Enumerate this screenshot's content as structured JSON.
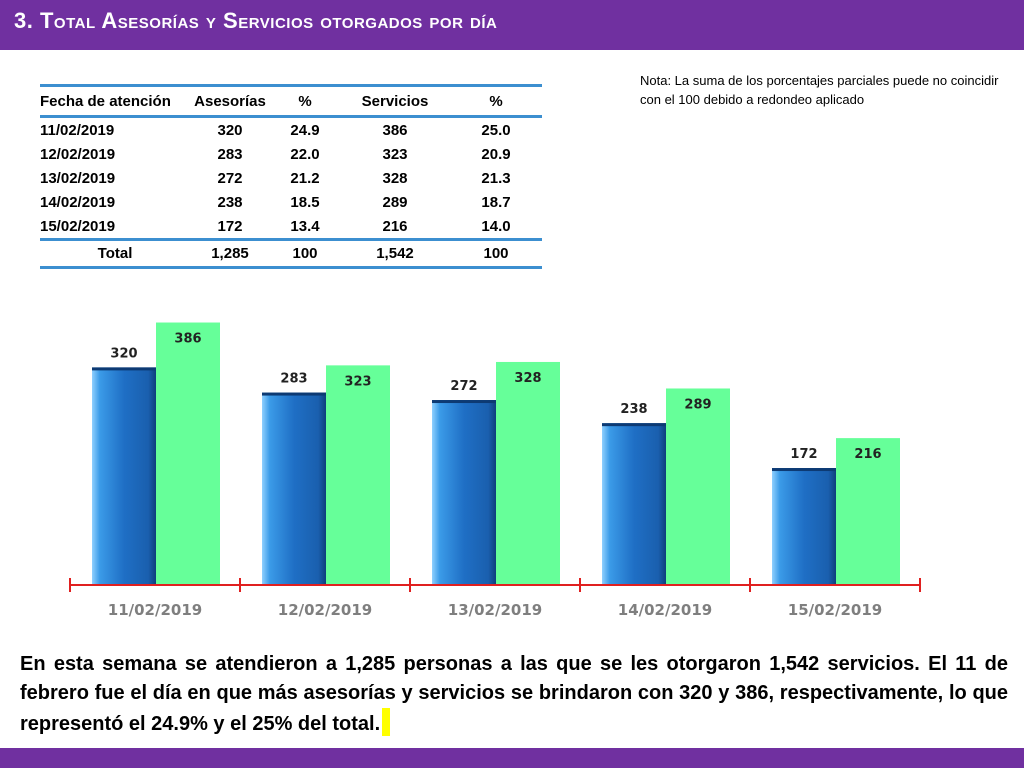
{
  "header": {
    "title": "3.  Total Asesorías y Servicios otorgados por día"
  },
  "note": "Nota: La suma de los porcentajes parciales puede no coincidir con el 100 debido a redondeo aplicado",
  "table": {
    "headers": [
      "Fecha de atención",
      "Asesorías",
      "%",
      "Servicios",
      "%"
    ],
    "rows": [
      [
        "11/02/2019",
        "320",
        "24.9",
        "386",
        "25.0"
      ],
      [
        "12/02/2019",
        "283",
        "22.0",
        "323",
        "20.9"
      ],
      [
        "13/02/2019",
        "272",
        "21.2",
        "328",
        "21.3"
      ],
      [
        "14/02/2019",
        "238",
        "18.5",
        "289",
        "18.7"
      ],
      [
        "15/02/2019",
        "172",
        "13.4",
        "216",
        "14.0"
      ]
    ],
    "total": [
      "Total",
      "1,285",
      "100",
      "1,542",
      "100"
    ]
  },
  "chart_data": {
    "type": "bar",
    "categories": [
      "11/02/2019",
      "12/02/2019",
      "13/02/2019",
      "14/02/2019",
      "15/02/2019"
    ],
    "series": [
      {
        "values": [
          320,
          283,
          272,
          238,
          172
        ],
        "color": "#1f6fc5"
      },
      {
        "values": [
          386,
          323,
          328,
          289,
          216
        ],
        "color": "#66ff99"
      }
    ],
    "data_labels": true,
    "grid": false,
    "legend": "none",
    "axis_color": "#e02020",
    "tick_label_color": "#7f7f7f"
  },
  "summary": "En esta semana se atendieron a 1,285 personas a las que se les otorgaron 1,542 servicios. El 11 de febrero fue el día en que más asesorías y servicios se brindaron con 320 y 386, respectivamente, lo que representó  el 24.9% y el 25% del total."
}
